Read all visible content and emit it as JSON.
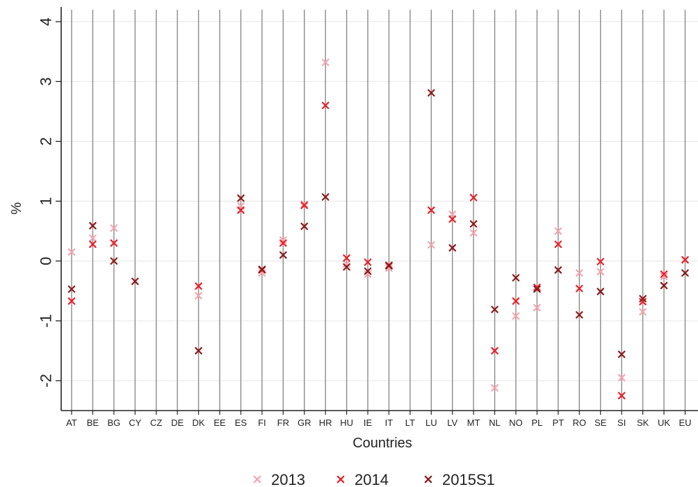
{
  "chart_data": {
    "type": "scatter",
    "title": "",
    "xlabel": "Countries",
    "ylabel": "%",
    "ylim": [
      -2.5,
      4.2
    ],
    "yticks": [
      -2,
      -1,
      0,
      1,
      2,
      3,
      4
    ],
    "categories": [
      "AT",
      "BE",
      "BG",
      "CY",
      "CZ",
      "DE",
      "DK",
      "EE",
      "ES",
      "FI",
      "FR",
      "GR",
      "HR",
      "HU",
      "IE",
      "IT",
      "LT",
      "LU",
      "LV",
      "MT",
      "NL",
      "NO",
      "PL",
      "PT",
      "RO",
      "SE",
      "SI",
      "SK",
      "UK",
      "EU"
    ],
    "grid": "vertical lines at each category; light horizontal lines at each y tick",
    "legend_position": "bottom",
    "series": [
      {
        "name": "2013",
        "color": "#f4a6b0",
        "marker": "x",
        "values": [
          0.15,
          0.38,
          0.55,
          null,
          null,
          null,
          -0.58,
          null,
          0.92,
          -0.2,
          0.35,
          0.95,
          3.32,
          -0.05,
          -0.22,
          -0.12,
          null,
          0.27,
          0.78,
          0.47,
          -2.12,
          -0.92,
          -0.78,
          0.5,
          -0.2,
          -0.18,
          -1.95,
          -0.85,
          -0.26,
          0.02
        ]
      },
      {
        "name": "2014",
        "color": "#e8202a",
        "marker": "x",
        "values": [
          -0.67,
          0.28,
          0.3,
          null,
          null,
          null,
          -0.42,
          null,
          0.85,
          -0.15,
          0.3,
          0.93,
          2.6,
          0.05,
          -0.02,
          -0.07,
          null,
          0.85,
          0.7,
          1.06,
          -1.5,
          -0.67,
          -0.44,
          0.28,
          -0.46,
          -0.01,
          -2.25,
          -0.68,
          -0.22,
          0.02
        ]
      },
      {
        "name": "2015S1",
        "color": "#8b1a1a",
        "marker": "x",
        "values": [
          -0.47,
          0.59,
          0.0,
          -0.34,
          null,
          null,
          -1.5,
          null,
          1.05,
          -0.14,
          0.1,
          0.58,
          1.07,
          -0.1,
          -0.17,
          -0.08,
          null,
          2.81,
          0.22,
          0.62,
          -0.81,
          -0.28,
          -0.47,
          -0.15,
          -0.9,
          -0.51,
          -1.56,
          -0.63,
          -0.41,
          -0.2
        ]
      }
    ]
  }
}
